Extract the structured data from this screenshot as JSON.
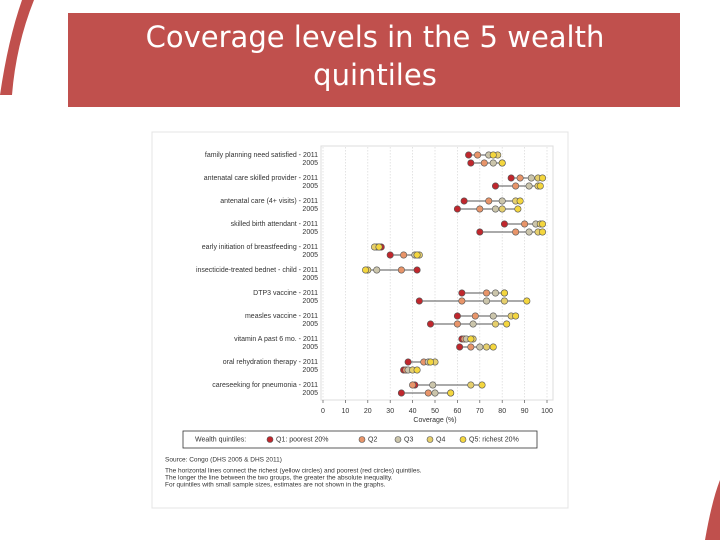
{
  "slide_title": "Coverage levels in the 5 wealth quintiles",
  "chart_data": {
    "type": "dot",
    "categories": [
      "family planning need satisfied - 2011",
      "2005",
      "antenatal care skilled provider - 2011",
      "2005",
      "antenatal care (4+ visits) - 2011",
      "2005",
      "skilled birth attendant - 2011",
      "2005",
      "early initiation of breastfeeding - 2011",
      "2005",
      "insecticide-treated bednet - child - 2011",
      "2005",
      "DTP3 vaccine - 2011",
      "2005",
      "measles vaccine - 2011",
      "2005",
      "vitamin A past 6 mo. - 2011",
      "2005",
      "oral rehydration therapy - 2011",
      "2005",
      "careseeking for pneumonia - 2011",
      "2005"
    ],
    "series": [
      {
        "name": "Q1: poorest 20%",
        "color": "#c0272d",
        "values": [
          65,
          66,
          84,
          77,
          63,
          60,
          81,
          70,
          26,
          30,
          42,
          null,
          62,
          43,
          60,
          48,
          62,
          61,
          38,
          36,
          41,
          35
        ]
      },
      {
        "name": "Q2",
        "color": "#e8956a",
        "values": [
          69,
          72,
          88,
          86,
          74,
          70,
          90,
          86,
          25,
          36,
          35,
          null,
          73,
          62,
          68,
          60,
          63,
          66,
          45,
          37,
          40,
          47
        ]
      },
      {
        "name": "Q3",
        "color": "#cbc5ab",
        "values": [
          74,
          76,
          93,
          92,
          80,
          77,
          95,
          92,
          24,
          41,
          24,
          null,
          77,
          73,
          76,
          67,
          64,
          70,
          47,
          38,
          49,
          50
        ]
      },
      {
        "name": "Q4",
        "color": "#e6cf6c",
        "values": [
          78,
          80,
          96,
          96,
          86,
          80,
          97,
          96,
          23,
          43,
          20,
          null,
          81,
          81,
          84,
          77,
          67,
          73,
          50,
          40,
          66,
          57
        ]
      },
      {
        "name": "Q5: richest 20%",
        "color": "#f4d63e",
        "values": [
          76,
          80,
          98,
          97,
          88,
          87,
          98,
          98,
          25,
          42,
          19,
          null,
          81,
          91,
          86,
          82,
          66,
          76,
          48,
          42,
          71,
          57
        ]
      }
    ],
    "xlim": [
      0,
      100
    ],
    "xticks": [
      0,
      10,
      20,
      30,
      40,
      50,
      60,
      70,
      80,
      90,
      100
    ],
    "xlabel": "Coverage (%)",
    "legend_title": "Wealth quintiles:",
    "grid": true,
    "notes": [
      "Source: Congo (DHS 2005 & DHS 2011)",
      "The horizontal lines connect the richest (yellow circles) and poorest (red circles) quintiles.",
      "The longer the line between the two groups, the greater the absolute inequality.",
      "For quintiles with small sample sizes, estimates are not shown in the graphs."
    ]
  }
}
